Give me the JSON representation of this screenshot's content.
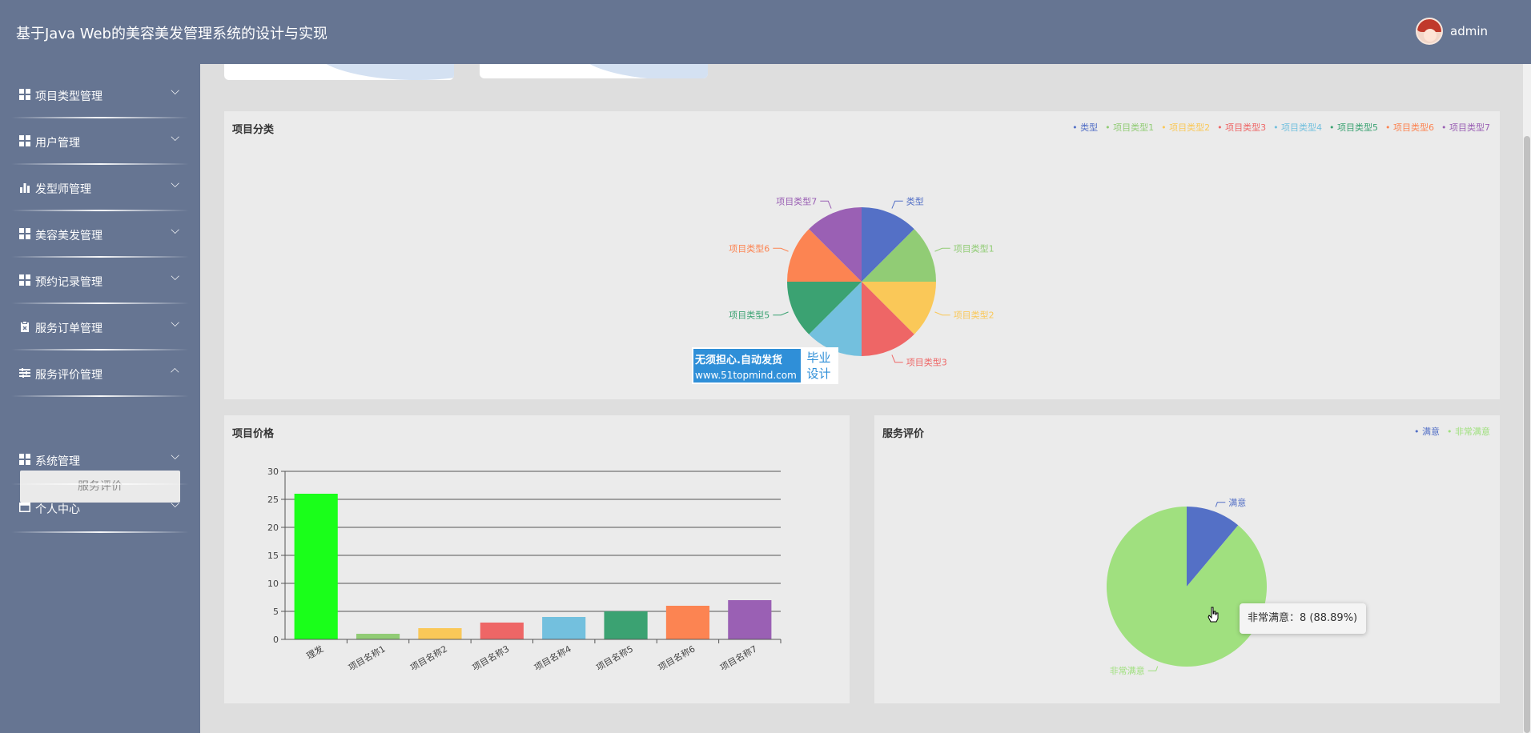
{
  "header": {
    "title": "基于Java Web的美容美发管理系统的设计与实现",
    "username": "admin"
  },
  "sidebar": {
    "items": [
      {
        "label": "项目类型管理",
        "icon": "grid-icon"
      },
      {
        "label": "用户管理",
        "icon": "grid-icon"
      },
      {
        "label": "发型师管理",
        "icon": "bar-chart-icon"
      },
      {
        "label": "美容美发管理",
        "icon": "grid-icon"
      },
      {
        "label": "预约记录管理",
        "icon": "grid-icon"
      },
      {
        "label": "服务订单管理",
        "icon": "clipboard-icon"
      },
      {
        "label": "服务评价管理",
        "icon": "list-icon",
        "expanded": true
      },
      {
        "label": "系统管理",
        "icon": "grid-icon"
      },
      {
        "label": "个人中心",
        "icon": "window-icon"
      }
    ],
    "submenu": {
      "label": "服务评价"
    }
  },
  "watermark": {
    "line1": "无须担心.自动发货",
    "line2": "www.51topmind.com",
    "badge_line1": "毕业",
    "badge_line2": "设计"
  },
  "tooltip": {
    "text": "非常满意：8 (88.89%)"
  },
  "chart_data": [
    {
      "type": "pie",
      "title": "项目分类",
      "legend_position": "top-right",
      "categories": [
        "类型",
        "项目类型1",
        "项目类型2",
        "项目类型3",
        "项目类型4",
        "项目类型5",
        "项目类型6",
        "项目类型7"
      ],
      "values": [
        1,
        1,
        1,
        1,
        1,
        1,
        1,
        1
      ],
      "colors": [
        "#5470c6",
        "#91cc75",
        "#fac858",
        "#ee6666",
        "#73c0de",
        "#3ba272",
        "#fc8452",
        "#9a60b4"
      ]
    },
    {
      "type": "bar",
      "title": "项目价格",
      "categories": [
        "理发",
        "项目名称1",
        "项目名称2",
        "项目名称3",
        "项目名称4",
        "项目名称5",
        "项目名称6",
        "项目名称7"
      ],
      "values": [
        26,
        1,
        2,
        3,
        4,
        5,
        6,
        7
      ],
      "ylim": [
        0,
        30
      ],
      "yticks": [
        0,
        5,
        10,
        15,
        20,
        25,
        30
      ],
      "grid": true,
      "colors": [
        "#1aff1a",
        "#91cc75",
        "#fac858",
        "#ee6666",
        "#73c0de",
        "#3ba272",
        "#fc8452",
        "#9a60b4"
      ]
    },
    {
      "type": "pie",
      "title": "服务评价",
      "legend_position": "top-right",
      "categories": [
        "满意",
        "非常满意"
      ],
      "values": [
        1,
        8
      ],
      "colors": [
        "#5470c6",
        "#a0e07f"
      ]
    }
  ]
}
